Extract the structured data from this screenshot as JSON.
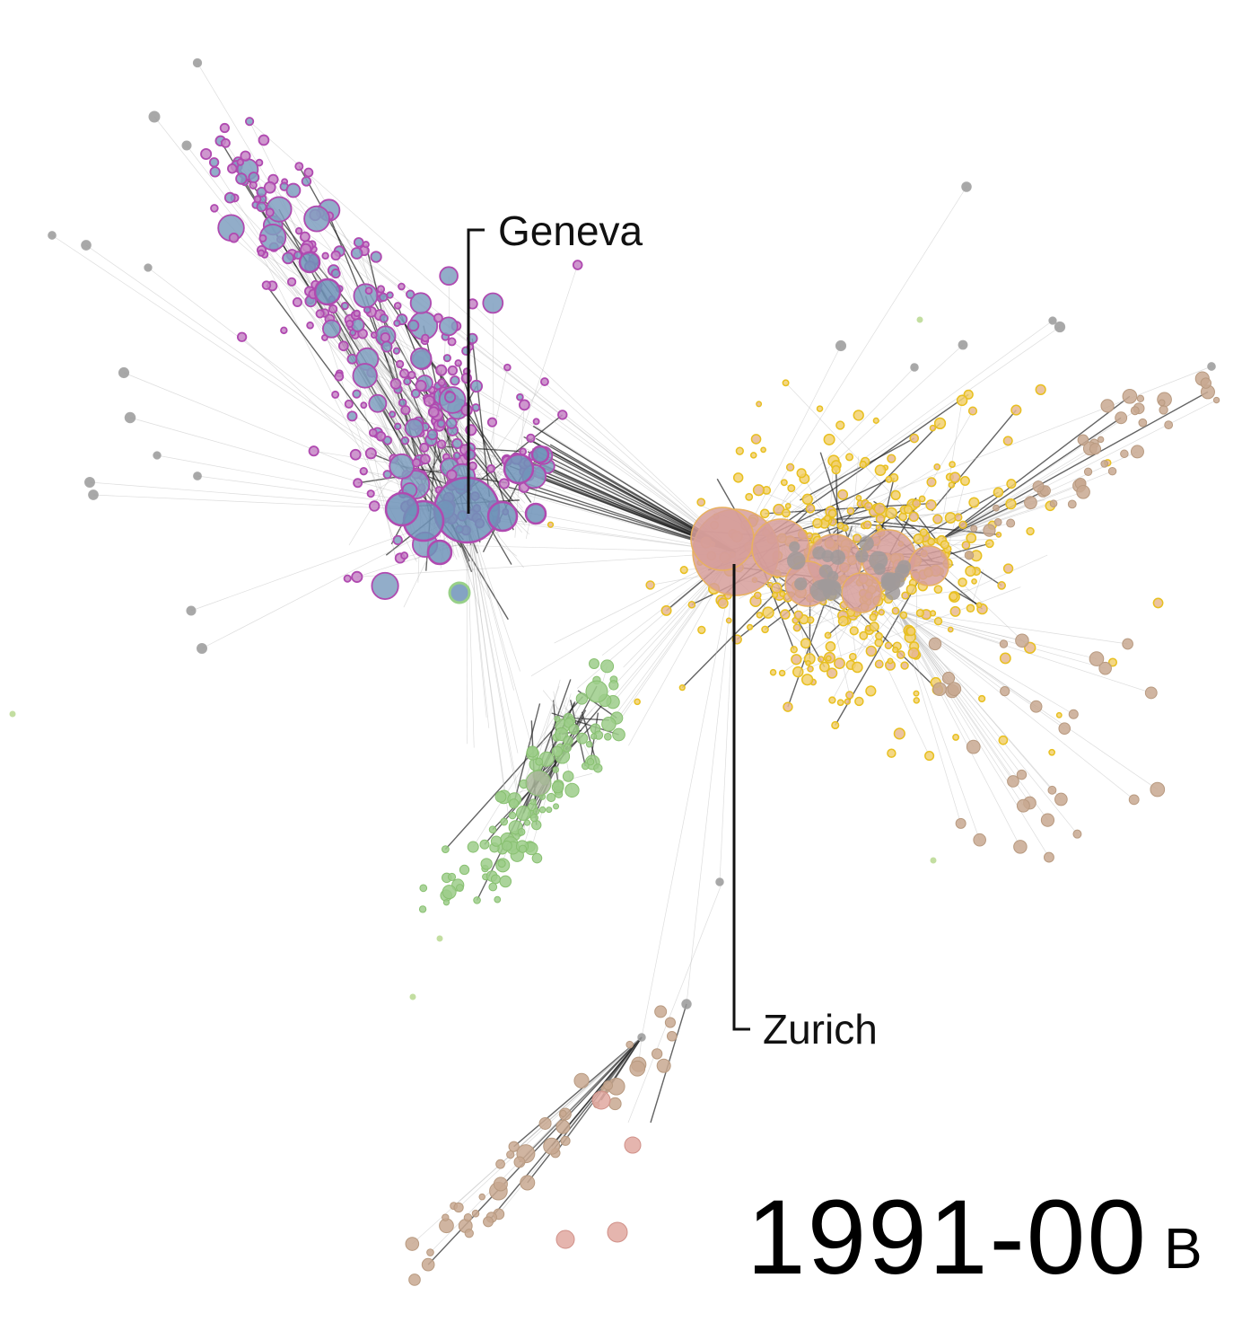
{
  "labels": {
    "geneva": "Geneva",
    "zurich": "Zurich"
  },
  "period": "1991-00",
  "panel": "B"
}
